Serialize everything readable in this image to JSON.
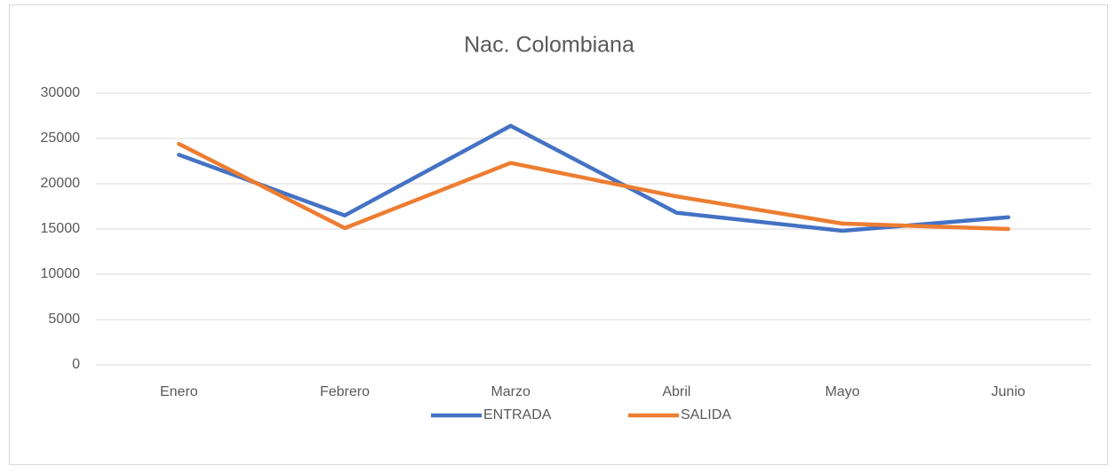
{
  "chart_data": {
    "type": "line",
    "title": "Nac. Colombiana",
    "categories": [
      "Enero",
      "Febrero",
      "Marzo",
      "Abril",
      "Mayo",
      "Junio"
    ],
    "series": [
      {
        "name": "ENTRADA",
        "color": "#4472c4",
        "values": [
          23200,
          16500,
          26400,
          16800,
          14800,
          16300
        ]
      },
      {
        "name": "SALIDA",
        "color": "#ed7d31",
        "values": [
          24400,
          15100,
          22300,
          18600,
          15600,
          15000
        ]
      }
    ],
    "ylim": [
      0,
      30000
    ],
    "yticks": [
      0,
      5000,
      10000,
      15000,
      20000,
      25000,
      30000
    ],
    "grid": true,
    "legend": "bottom"
  }
}
